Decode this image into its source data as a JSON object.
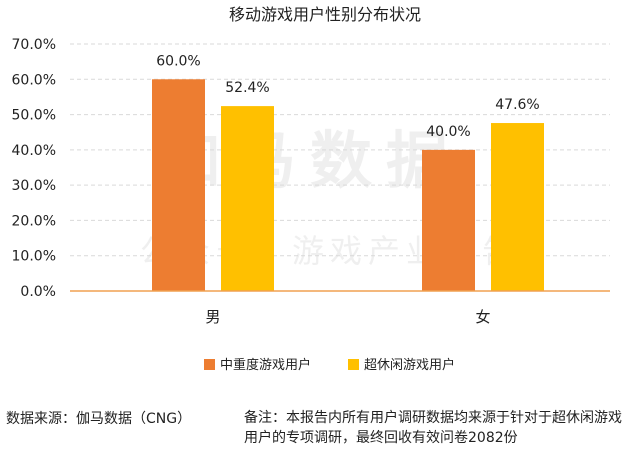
{
  "chart_data": {
    "type": "bar",
    "title": "移动游戏用户性别分布状况",
    "categories": [
      "男",
      "女"
    ],
    "series": [
      {
        "name": "中重度游戏用户",
        "values": [
          60.0,
          40.0
        ],
        "labels": [
          "60.0%",
          "40.0%"
        ],
        "color": "#ED7D31"
      },
      {
        "name": "超休闲游戏用户",
        "values": [
          52.4,
          47.6
        ],
        "labels": [
          "52.4%",
          "47.6%"
        ],
        "color": "#FFC000"
      }
    ],
    "ylim": [
      0,
      70
    ],
    "yticks": [
      "0.0%",
      "10.0%",
      "20.0%",
      "30.0%",
      "40.0%",
      "50.0%",
      "60.0%",
      "70.0%"
    ],
    "grid": true,
    "legend": "bottom"
  },
  "watermark": {
    "main": "伽马数据",
    "sub": "公众号：游戏产业报告"
  },
  "footer": {
    "source": "数据来源：伽马数据（CNG）",
    "note": "备注：本报告内所有用户调研数据均来源于针对于超休闲游戏用户的专项调研，最终回收有效问卷2082份"
  },
  "colors": {
    "axis": "#F0A050",
    "grid": "#D9D9D9"
  }
}
